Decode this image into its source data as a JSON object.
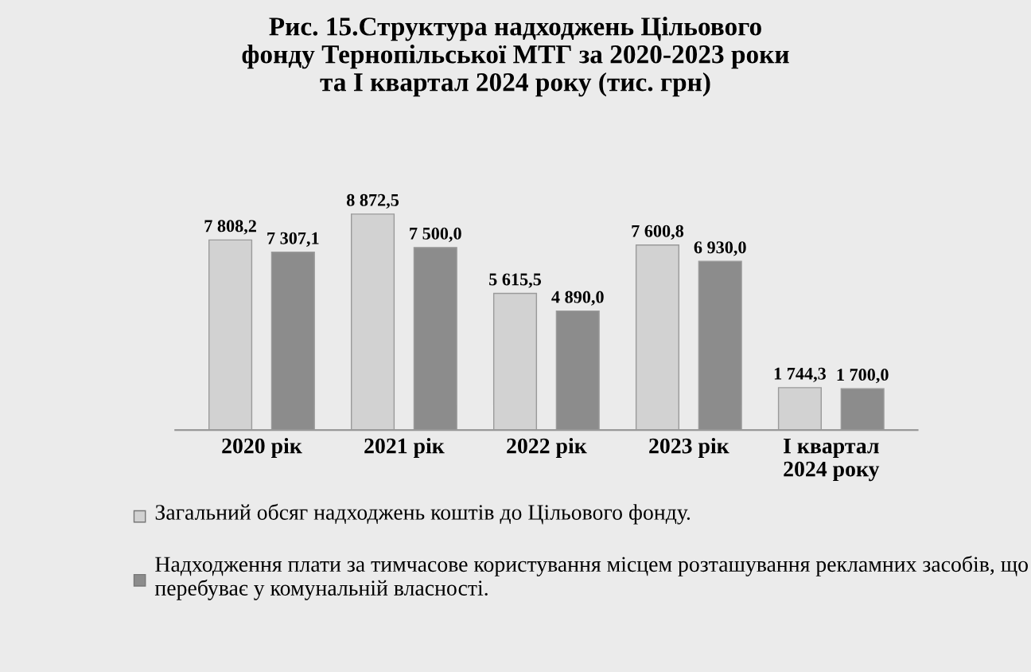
{
  "chart_data": {
    "type": "bar",
    "title": "Рис. 15.Структура надходжень Цільового\nфонду Тернопільської МТГ за 2020-2023 роки\nта I квартал 2024 року (тис. грн)",
    "categories": [
      "2020 рік",
      "2021 рік",
      "2022 рік",
      "2023 рік",
      "I квартал\n2024 року"
    ],
    "series": [
      {
        "name": "Загальний обсяг надходжень коштів до Цільового фонду.",
        "color": "#d2d2d2",
        "values": [
          7808.2,
          8872.5,
          5615.5,
          7600.8,
          1744.3
        ],
        "value_labels": [
          "7 808,2",
          "8 872,5",
          "5 615,5",
          "7 600,8",
          "1 744,3"
        ]
      },
      {
        "name": "Надходження плати за тимчасове користування місцем розташування рекламних засобів, що перебуває у комунальній власності.",
        "color": "#8c8c8c",
        "values": [
          7307.1,
          7500.0,
          4890.0,
          6930.0,
          1700.0
        ],
        "value_labels": [
          "7 307,1",
          "7 500,0",
          "4 890,0",
          "6 930,0",
          "1 700,0"
        ]
      }
    ],
    "legend": "bottom",
    "tick_labels": "x"
  }
}
